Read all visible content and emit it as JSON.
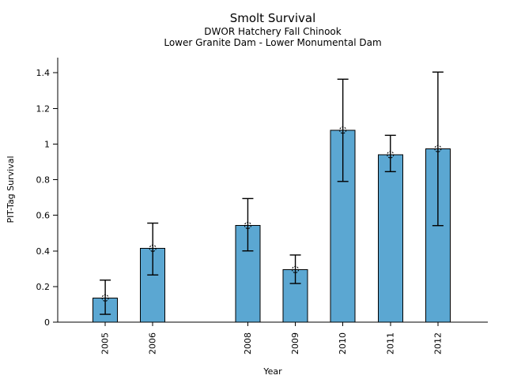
{
  "chart_data": {
    "type": "bar",
    "title": "Smolt Survival",
    "subtitle1": "DWOR Hatchery Fall Chinook",
    "subtitle2": "Lower Granite Dam - Lower Monumental Dam",
    "xlabel": "Year",
    "ylabel": "PIT-Tag Survival",
    "categories": [
      "2005",
      "2006",
      "2008",
      "2009",
      "2010",
      "2011",
      "2012"
    ],
    "values": [
      0.136,
      0.415,
      0.543,
      0.295,
      1.078,
      0.94,
      0.974
    ],
    "error_low": [
      0.044,
      0.265,
      0.4,
      0.217,
      0.79,
      0.845,
      0.542
    ],
    "error_high": [
      0.236,
      0.556,
      0.694,
      0.377,
      1.364,
      1.049,
      1.404
    ],
    "yticks": [
      "0",
      "0.2",
      "0.4",
      "0.6",
      "0.8",
      "1",
      "1.2",
      "1.4"
    ],
    "ytick_values": [
      0,
      0.2,
      0.4,
      0.6,
      0.8,
      1.0,
      1.2,
      1.4
    ],
    "ylim": [
      0,
      1.485
    ],
    "xlim": [
      2004,
      2013.05
    ],
    "grid": false,
    "legend": null,
    "bar_color": "#5BA7D2",
    "edge_color": "#000000",
    "error_color": "#000000",
    "marker": "open-dotted-circle"
  }
}
